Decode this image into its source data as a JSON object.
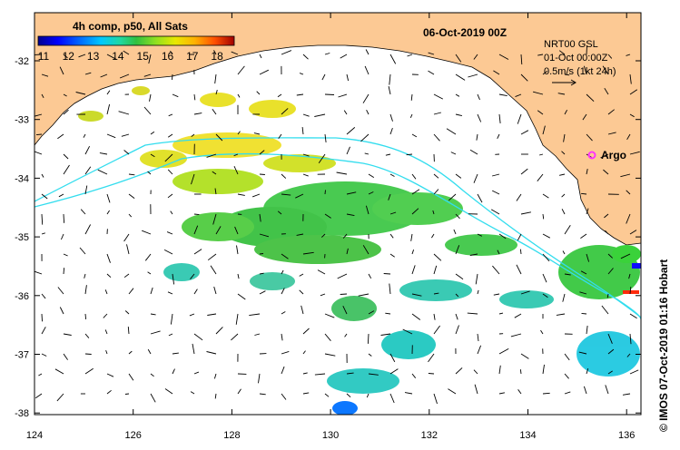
{
  "map": {
    "composite_label": "4h comp, p50, All Sats",
    "date_title": "06-Oct-2019 00Z",
    "colorbar": {
      "ticks": [
        "11",
        "12",
        "13",
        "14",
        "15",
        "16",
        "17",
        "18"
      ],
      "colors": [
        "#00008f",
        "#0000ff",
        "#0060ff",
        "#00c0ff",
        "#20e0c0",
        "#40c040",
        "#30d030",
        "#a0e020",
        "#e0e000",
        "#ffc000",
        "#ff8000",
        "#ff2000",
        "#a00000"
      ]
    },
    "current_source": "NRT00 GSL",
    "current_time": "01-Oct 00:00Z",
    "scale_label": "0.5m/s (1kt 24h)",
    "argo_label": "Argo",
    "lon_ticks": [
      "124",
      "126",
      "128",
      "130",
      "132",
      "134",
      "136"
    ],
    "lat_ticks": [
      "-32",
      "-33",
      "-34",
      "-35",
      "-36",
      "-37",
      "-38"
    ],
    "credit": "© IMOS 07-Oct-2019 01:16 Hobart",
    "land_color": "#fcc994",
    "track_color": "#33ddee",
    "argo_color": "#ff33ff"
  }
}
